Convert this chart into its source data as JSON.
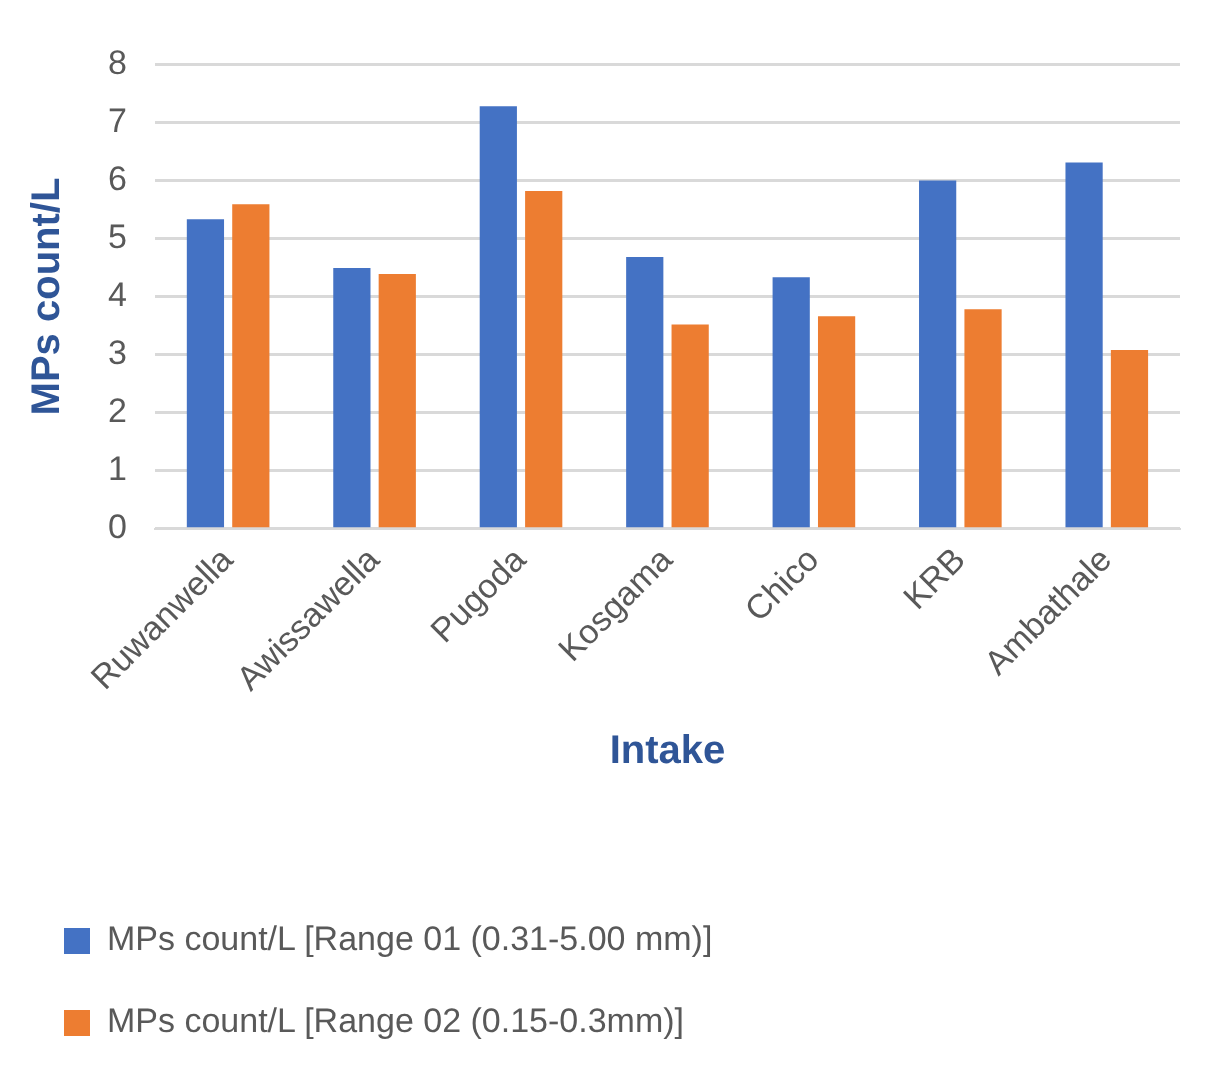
{
  "chart_data": {
    "type": "bar",
    "xlabel": "Intake",
    "ylabel": "MPs count/L",
    "categories": [
      "Ruwanwella",
      "Awissawella",
      "Pugoda",
      "Kosgama",
      "Chico",
      "KRB",
      "Ambathale"
    ],
    "series": [
      {
        "name": "MPs count/L [Range 01 (0.31-5.00 mm)]",
        "color": "#4472c4",
        "values": [
          5.33,
          4.49,
          7.28,
          4.68,
          4.33,
          6.0,
          6.31
        ]
      },
      {
        "name": "MPs count/L [Range 02 (0.15-0.3mm)]",
        "color": "#ed7d31",
        "values": [
          5.59,
          4.39,
          5.82,
          3.52,
          3.66,
          3.78,
          3.08
        ]
      }
    ],
    "ylim": [
      0,
      8
    ],
    "yticks": [
      0,
      1,
      2,
      3,
      4,
      5,
      6,
      7,
      8
    ],
    "grid": "y",
    "legend": "bottom"
  }
}
